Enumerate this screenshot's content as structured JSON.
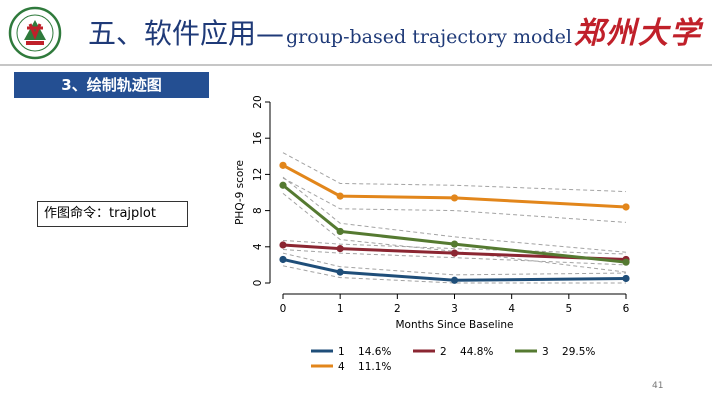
{
  "header": {
    "title_cn": "五、软件应用—",
    "title_en": "group-based trajectory model",
    "brand": "郑州大学",
    "section_label": "3、绘制轨迹图"
  },
  "command_box": {
    "text": "作图命令：trajplot"
  },
  "page_number": "41",
  "colors": {
    "series_1": "#1f4e79",
    "series_2": "#8b2632",
    "series_3": "#557a31",
    "series_4": "#e2861b",
    "ci_line": "#a3a3a3",
    "brand_red": "#c0202a",
    "title_blue": "#1f3a78",
    "tab_blue": "#244f92"
  },
  "chart_data": {
    "type": "line",
    "xlabel": "Months Since Baseline",
    "ylabel": "PHQ-9 score",
    "xlim": [
      0,
      6
    ],
    "ylim": [
      0,
      20
    ],
    "xticks": [
      0,
      1,
      2,
      3,
      4,
      5,
      6
    ],
    "yticks": [
      0,
      4,
      8,
      12,
      16,
      20
    ],
    "grid": false,
    "legend_position": "bottom",
    "x": [
      0,
      1,
      3,
      6
    ],
    "series": [
      {
        "name": "1",
        "share": "14.6%",
        "color": "#1f4e79",
        "values": [
          2.6,
          1.2,
          0.3,
          0.5
        ],
        "ci_upper": [
          3.3,
          1.8,
          0.9,
          1.1
        ],
        "ci_lower": [
          1.9,
          0.6,
          0.0,
          0.0
        ]
      },
      {
        "name": "2",
        "share": "44.8%",
        "color": "#8b2632",
        "values": [
          4.2,
          3.8,
          3.3,
          2.6
        ],
        "ci_upper": [
          4.7,
          4.3,
          3.8,
          3.2
        ],
        "ci_lower": [
          3.7,
          3.3,
          2.8,
          2.0
        ]
      },
      {
        "name": "3",
        "share": "29.5%",
        "color": "#557a31",
        "values": [
          10.8,
          5.7,
          4.3,
          2.3
        ],
        "ci_upper": [
          11.7,
          6.6,
          5.1,
          3.4
        ],
        "ci_lower": [
          9.9,
          4.8,
          3.5,
          1.2
        ]
      },
      {
        "name": "4",
        "share": "11.1%",
        "color": "#e2861b",
        "values": [
          13.0,
          9.6,
          9.4,
          8.4
        ],
        "ci_upper": [
          14.4,
          11.0,
          10.8,
          10.1
        ],
        "ci_lower": [
          11.6,
          8.2,
          8.0,
          6.7
        ]
      }
    ]
  }
}
